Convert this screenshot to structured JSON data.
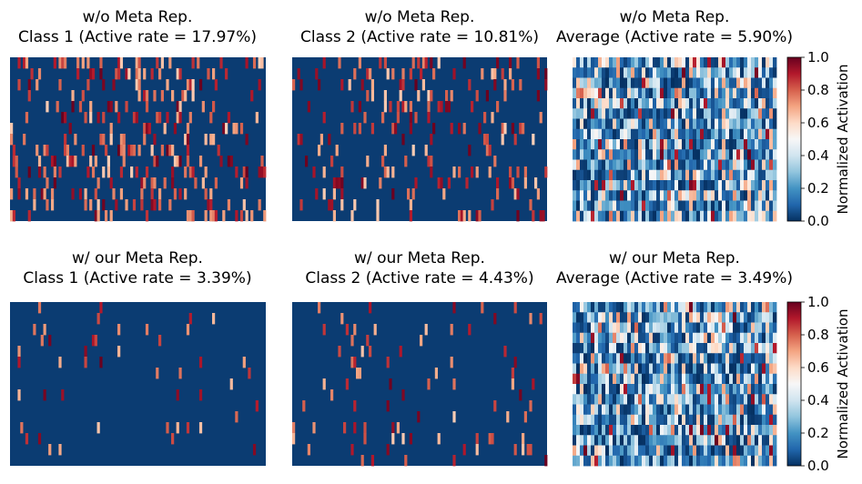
{
  "chart_data": {
    "type": "heatmap",
    "colormap": "RdBu_r",
    "value_range": [
      0.0,
      1.0
    ],
    "rows": [
      {
        "row_label": "without meta representation",
        "panels": [
          {
            "title_line1": "w/o Meta Rep.",
            "title_line2": "Class 1 (Active rate = 17.97%)",
            "active_rate": 17.97,
            "kind": "sparse",
            "seed": 11
          },
          {
            "title_line1": "w/o Meta Rep.",
            "title_line2": "Class 2 (Active rate = 10.81%)",
            "active_rate": 10.81,
            "kind": "sparse",
            "seed": 23
          },
          {
            "title_line1": "w/o Meta Rep.",
            "title_line2": "Average (Active rate = 5.90%)",
            "active_rate": 5.9,
            "kind": "dense",
            "seed": 37
          }
        ],
        "colorbar": {
          "label": "Normalized Activation",
          "ticks": [
            "0.0",
            "0.2",
            "0.4",
            "0.6",
            "0.8",
            "1.0"
          ]
        }
      },
      {
        "row_label": "with meta representation",
        "panels": [
          {
            "title_line1": "w/ our Meta Rep.",
            "title_line2": "Class 1 (Active rate = 3.39%)",
            "active_rate": 3.39,
            "kind": "sparse",
            "seed": 53
          },
          {
            "title_line1": "w/ our Meta Rep.",
            "title_line2": "Class 2 (Active rate = 4.43%)",
            "active_rate": 4.43,
            "kind": "sparse",
            "seed": 71
          },
          {
            "title_line1": "w/ our Meta Rep.",
            "title_line2": "Average (Active rate = 3.49%)",
            "active_rate": 3.49,
            "kind": "dense",
            "seed": 89
          }
        ],
        "colorbar": {
          "label": "Normalized Activation",
          "ticks": [
            "0.0",
            "0.2",
            "0.4",
            "0.6",
            "0.8",
            "1.0"
          ]
        }
      }
    ]
  }
}
